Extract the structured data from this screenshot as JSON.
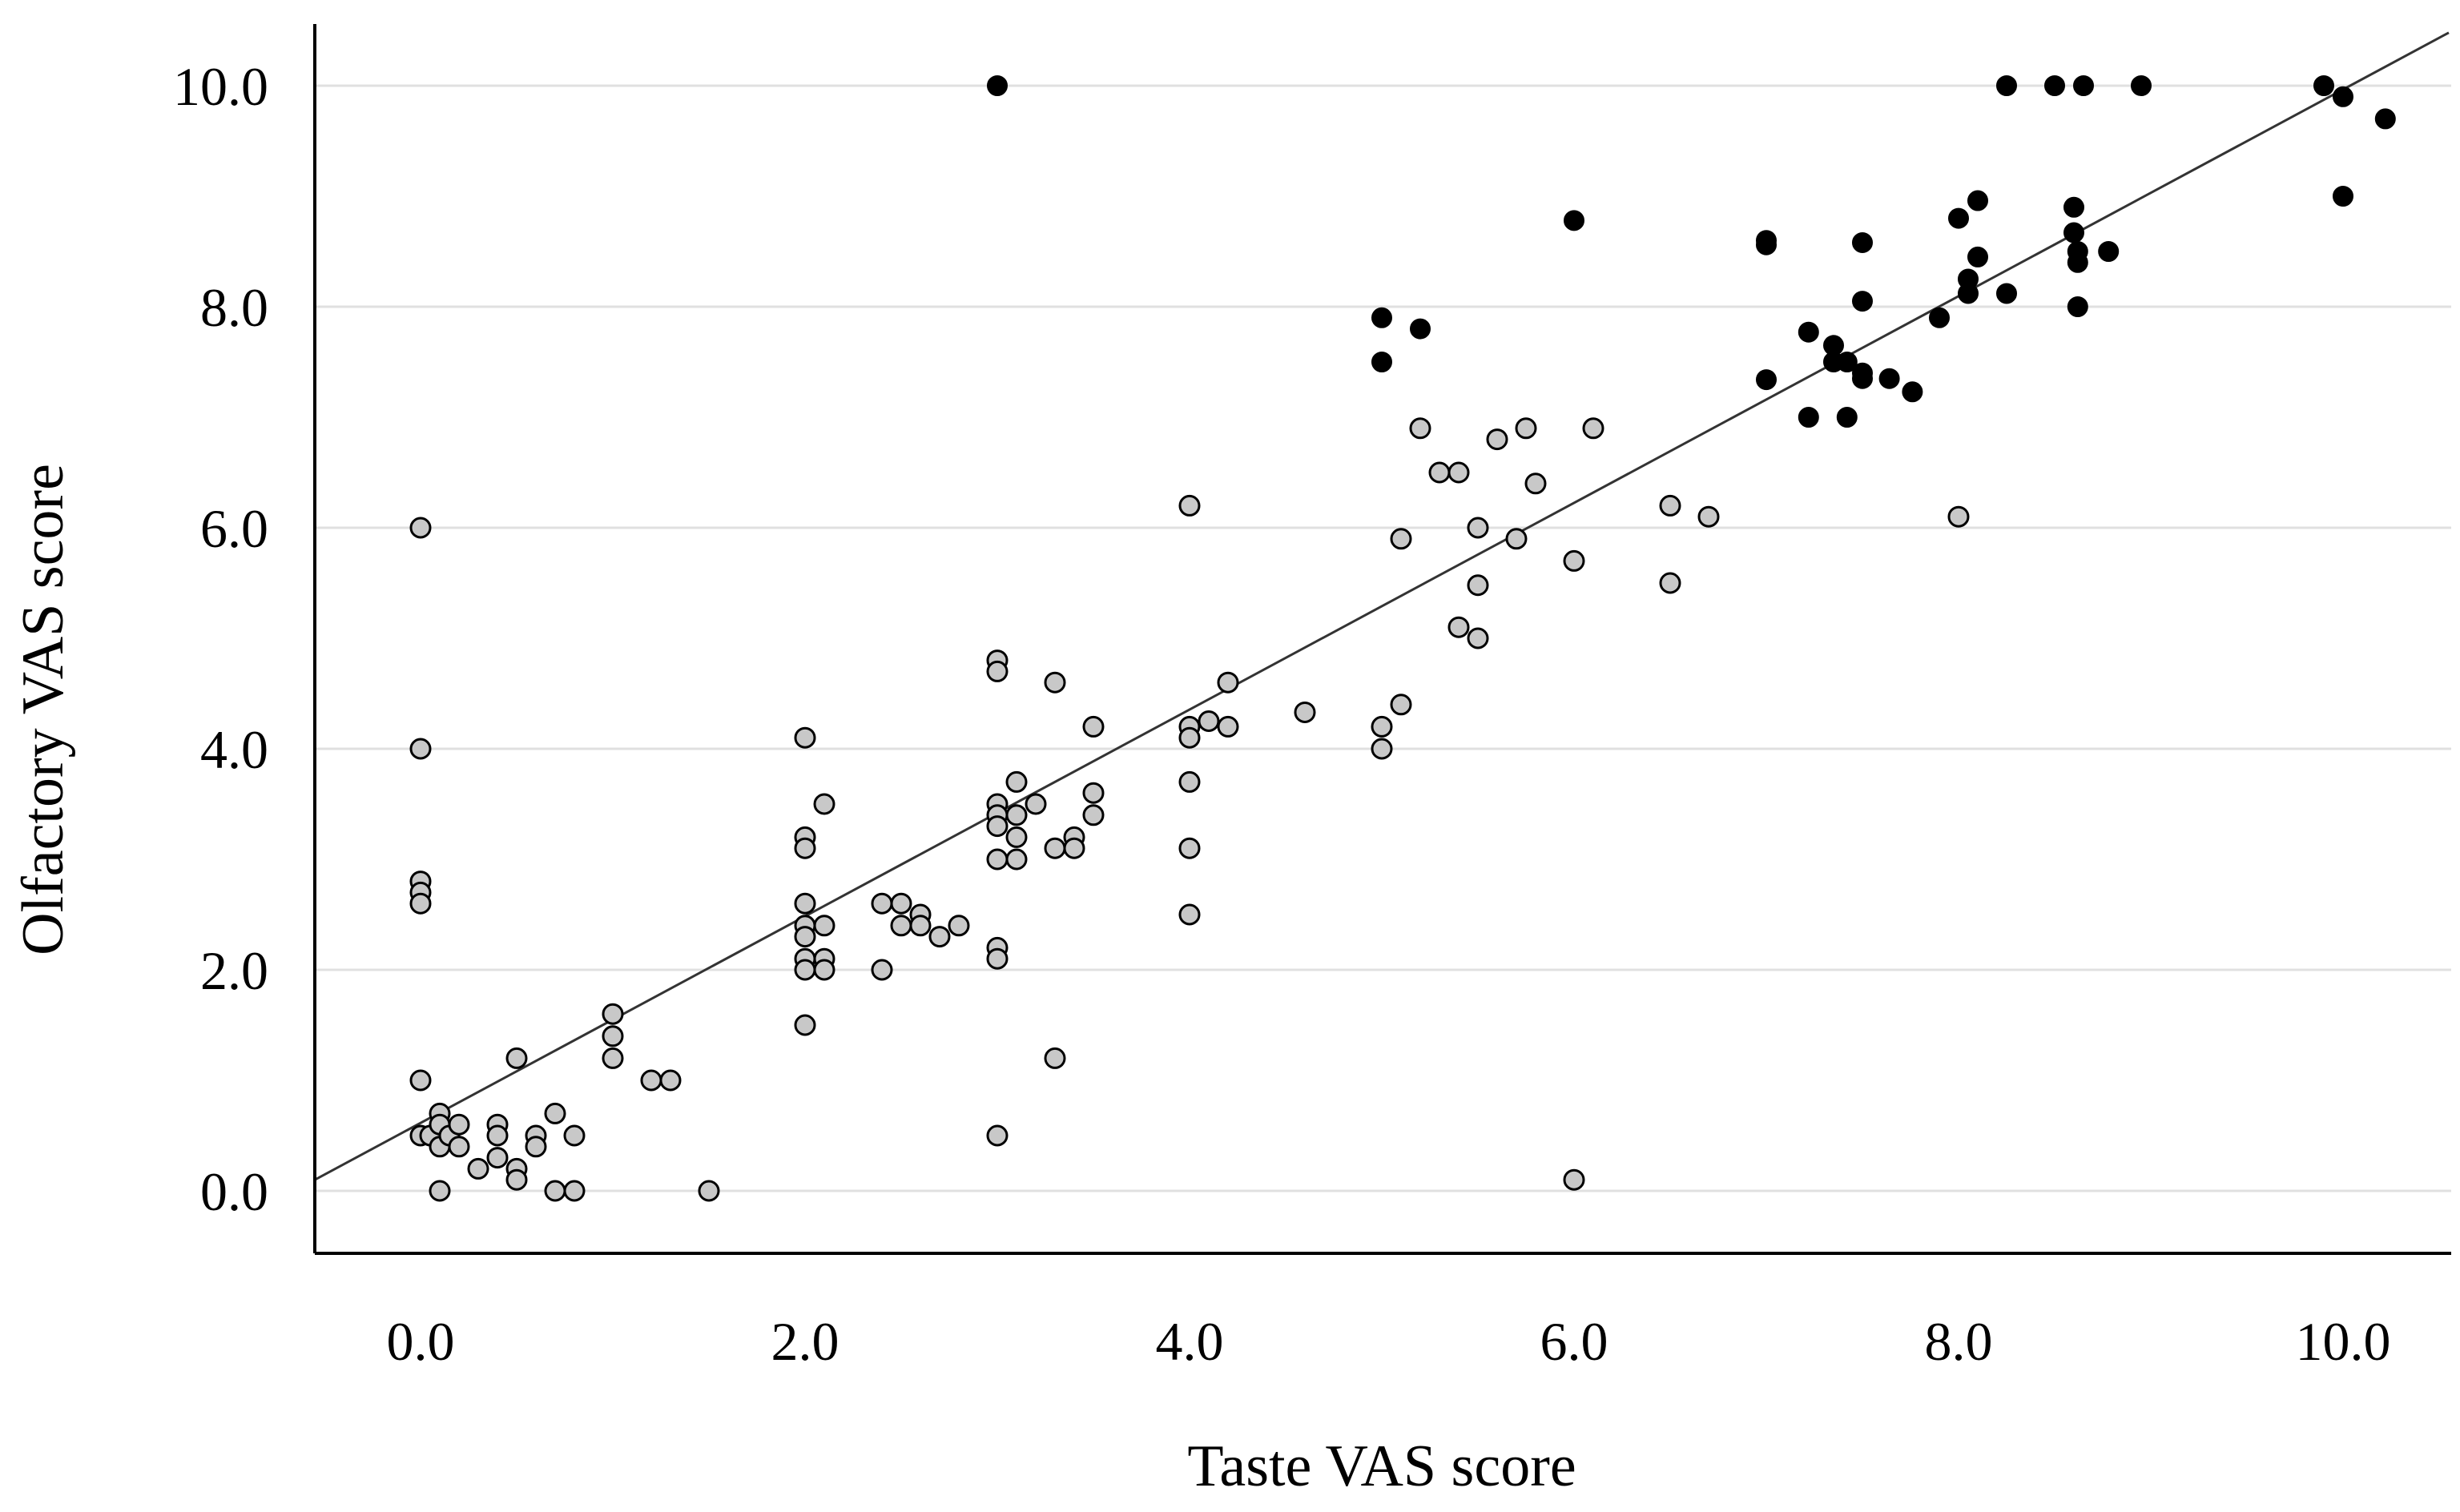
{
  "chart_data": {
    "type": "scatter",
    "title": "",
    "xlabel": "Taste VAS score",
    "ylabel": "Olfactory VAS score",
    "xlim": [
      -0.55,
      10.55
    ],
    "ylim": [
      -0.55,
      10.55
    ],
    "x_ticks": [
      "0.0",
      "2.0",
      "4.0",
      "6.0",
      "8.0",
      "10.0"
    ],
    "y_ticks": [
      "0.0",
      "2.0",
      "4.0",
      "6.0",
      "8.0",
      "10.0"
    ],
    "grid": "horizontal",
    "legend": "none",
    "colors": {
      "gray_fill": "#c8c8c8",
      "black_fill": "#000000",
      "gridline": "#e0e0e0",
      "axis": "#000000"
    },
    "fit_line": {
      "x": [
        -0.55,
        10.55
      ],
      "y": [
        0.1,
        10.48
      ]
    },
    "series": [
      {
        "marker": "open-gray",
        "points": [
          [
            0,
            6.0
          ],
          [
            0,
            4.0
          ],
          [
            0,
            2.8
          ],
          [
            0,
            2.7
          ],
          [
            0,
            2.6
          ],
          [
            0,
            1.0
          ],
          [
            0,
            0.5
          ],
          [
            0.05,
            0.5
          ],
          [
            0.1,
            0.7
          ],
          [
            0.1,
            0.6
          ],
          [
            0.1,
            0.4
          ],
          [
            0.1,
            0.0
          ],
          [
            0.15,
            0.5
          ],
          [
            0.2,
            0.6
          ],
          [
            0.2,
            0.4
          ],
          [
            0.3,
            0.2
          ],
          [
            0.4,
            0.6
          ],
          [
            0.4,
            0.5
          ],
          [
            0.4,
            0.3
          ],
          [
            0.5,
            1.2
          ],
          [
            0.5,
            0.2
          ],
          [
            0.5,
            0.1
          ],
          [
            0.6,
            0.5
          ],
          [
            0.6,
            0.4
          ],
          [
            0.7,
            0.7
          ],
          [
            0.7,
            0.0
          ],
          [
            0.8,
            0.5
          ],
          [
            0.8,
            0.0
          ],
          [
            1.0,
            1.6
          ],
          [
            1.0,
            1.4
          ],
          [
            1.0,
            1.2
          ],
          [
            1.2,
            1.0
          ],
          [
            1.3,
            1.0
          ],
          [
            1.5,
            0.0
          ],
          [
            2.0,
            4.1
          ],
          [
            2.0,
            3.2
          ],
          [
            2.0,
            3.1
          ],
          [
            2.0,
            2.6
          ],
          [
            2.0,
            2.4
          ],
          [
            2.0,
            2.3
          ],
          [
            2.0,
            2.1
          ],
          [
            2.0,
            2.0
          ],
          [
            2.0,
            1.5
          ],
          [
            2.1,
            3.5
          ],
          [
            2.1,
            2.4
          ],
          [
            2.1,
            2.1
          ],
          [
            2.1,
            2.0
          ],
          [
            2.4,
            2.6
          ],
          [
            2.4,
            2.0
          ],
          [
            2.5,
            2.6
          ],
          [
            2.5,
            2.4
          ],
          [
            2.6,
            2.5
          ],
          [
            2.6,
            2.4
          ],
          [
            2.7,
            2.3
          ],
          [
            2.8,
            2.4
          ],
          [
            3.0,
            4.8
          ],
          [
            3.0,
            4.7
          ],
          [
            3.0,
            3.5
          ],
          [
            3.0,
            3.4
          ],
          [
            3.0,
            3.3
          ],
          [
            3.0,
            3.0
          ],
          [
            3.0,
            2.2
          ],
          [
            3.0,
            2.1
          ],
          [
            3.0,
            0.5
          ],
          [
            3.1,
            3.7
          ],
          [
            3.1,
            3.4
          ],
          [
            3.1,
            3.2
          ],
          [
            3.1,
            3.0
          ],
          [
            3.2,
            3.5
          ],
          [
            3.3,
            4.6
          ],
          [
            3.3,
            3.1
          ],
          [
            3.3,
            1.2
          ],
          [
            3.4,
            3.2
          ],
          [
            3.4,
            3.1
          ],
          [
            3.5,
            4.2
          ],
          [
            3.5,
            3.6
          ],
          [
            3.5,
            3.4
          ],
          [
            4.0,
            6.2
          ],
          [
            4.0,
            4.2
          ],
          [
            4.0,
            4.1
          ],
          [
            4.0,
            3.7
          ],
          [
            4.0,
            3.1
          ],
          [
            4.0,
            2.5
          ],
          [
            4.1,
            4.25
          ],
          [
            4.2,
            4.6
          ],
          [
            4.2,
            4.2
          ],
          [
            4.6,
            4.33
          ],
          [
            5.0,
            4.2
          ],
          [
            5.0,
            4.0
          ],
          [
            5.1,
            5.9
          ],
          [
            5.1,
            4.4
          ],
          [
            5.2,
            6.9
          ],
          [
            5.3,
            6.5
          ],
          [
            5.4,
            6.5
          ],
          [
            5.4,
            5.1
          ],
          [
            5.5,
            6.0
          ],
          [
            5.5,
            5.48
          ],
          [
            5.5,
            5.0
          ],
          [
            5.6,
            6.8
          ],
          [
            5.7,
            5.9
          ],
          [
            5.75,
            6.9
          ],
          [
            5.8,
            6.4
          ],
          [
            6.0,
            5.7
          ],
          [
            6.0,
            0.1
          ],
          [
            6.1,
            6.9
          ],
          [
            6.5,
            6.2
          ],
          [
            6.5,
            5.5
          ],
          [
            6.7,
            6.1
          ],
          [
            8.0,
            6.1
          ]
        ]
      },
      {
        "marker": "solid-black",
        "points": [
          [
            3.0,
            10.0
          ],
          [
            5.0,
            7.9
          ],
          [
            5.0,
            7.5
          ],
          [
            5.2,
            7.8
          ],
          [
            6.0,
            8.78
          ],
          [
            7.0,
            8.6
          ],
          [
            7.0,
            8.56
          ],
          [
            7.0,
            7.34
          ],
          [
            7.22,
            7.77
          ],
          [
            7.22,
            7.0
          ],
          [
            7.35,
            7.65
          ],
          [
            7.35,
            7.5
          ],
          [
            7.42,
            7.5
          ],
          [
            7.42,
            7.0
          ],
          [
            7.5,
            8.58
          ],
          [
            7.5,
            8.05
          ],
          [
            7.5,
            7.4
          ],
          [
            7.5,
            7.35
          ],
          [
            7.64,
            7.35
          ],
          [
            7.76,
            7.23
          ],
          [
            7.9,
            7.9
          ],
          [
            8.0,
            8.8
          ],
          [
            8.05,
            8.25
          ],
          [
            8.05,
            8.12
          ],
          [
            8.1,
            8.96
          ],
          [
            8.1,
            8.45
          ],
          [
            8.25,
            10.0
          ],
          [
            8.25,
            8.12
          ],
          [
            8.5,
            10.0
          ],
          [
            8.6,
            8.9
          ],
          [
            8.6,
            8.67
          ],
          [
            8.62,
            8.5
          ],
          [
            8.62,
            8.4
          ],
          [
            8.62,
            8.0
          ],
          [
            8.65,
            10.0
          ],
          [
            8.78,
            8.5
          ],
          [
            8.95,
            10.0
          ],
          [
            9.9,
            10.0
          ],
          [
            10.0,
            9.9
          ],
          [
            10.0,
            9.0
          ],
          [
            10.22,
            9.7
          ]
        ]
      }
    ]
  }
}
